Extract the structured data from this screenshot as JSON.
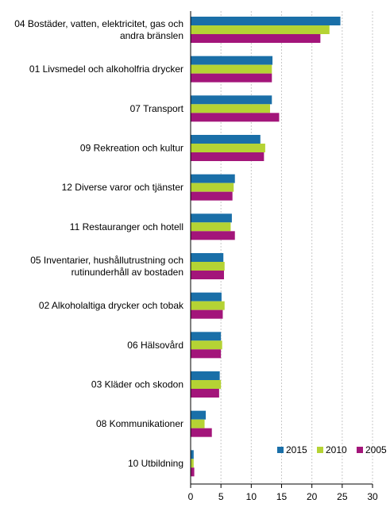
{
  "chart_data": {
    "type": "bar",
    "orientation": "horizontal",
    "categories": [
      [
        "04 Bostäder, vatten, elektricitet, gas och",
        "andra bränslen"
      ],
      [
        "01 Livsmedel och alkoholfria drycker"
      ],
      [
        "07 Transport"
      ],
      [
        "09 Rekreation och kultur"
      ],
      [
        "12 Diverse varor och tjänster"
      ],
      [
        "11 Restauranger och hotell"
      ],
      [
        "05 Inventarier, hushållutrustning och",
        "rutinunderhåll av bostaden"
      ],
      [
        "02 Alkoholaltiga drycker och tobak"
      ],
      [
        "06 Hälsovård"
      ],
      [
        "03 Kläder och skodon"
      ],
      [
        "08 Kommunikationer"
      ],
      [
        "10 Utbildning"
      ]
    ],
    "series": [
      {
        "name": "2015",
        "color": "#1a6fa8",
        "values": [
          24.7,
          13.5,
          13.4,
          11.5,
          7.3,
          6.8,
          5.4,
          5.1,
          5.0,
          4.8,
          2.5,
          0.5
        ]
      },
      {
        "name": "2010",
        "color": "#b5d334",
        "values": [
          22.9,
          13.4,
          13.1,
          12.3,
          7.1,
          6.6,
          5.6,
          5.6,
          5.2,
          5.0,
          2.3,
          0.5
        ]
      },
      {
        "name": "2005",
        "color": "#a3157a",
        "values": [
          21.4,
          13.4,
          14.6,
          12.1,
          6.9,
          7.3,
          5.5,
          5.3,
          5.0,
          4.7,
          3.5,
          0.6
        ]
      }
    ],
    "xlim": [
      0,
      30
    ],
    "xticks": [
      0,
      5,
      10,
      15,
      20,
      25,
      30
    ],
    "grid": "vertical dashed",
    "legend_position": "bottom-right",
    "title": "",
    "xlabel": "",
    "ylabel": ""
  }
}
